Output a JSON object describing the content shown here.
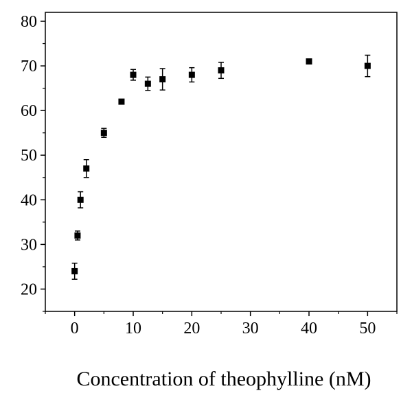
{
  "chart_data": {
    "type": "scatter",
    "title": "",
    "xlabel": "Concentration of theophylline (nM)",
    "ylabel": "",
    "xlim": [
      -5,
      55
    ],
    "ylim": [
      15,
      82
    ],
    "x_ticks": [
      0,
      10,
      20,
      30,
      40,
      50
    ],
    "y_ticks": [
      20,
      30,
      40,
      50,
      60,
      70,
      80
    ],
    "grid": false,
    "marker_color": "#000000",
    "points": [
      {
        "x": 0,
        "y": 24,
        "err": 1.8
      },
      {
        "x": 0.5,
        "y": 32,
        "err": 1.0
      },
      {
        "x": 1,
        "y": 40,
        "err": 1.8
      },
      {
        "x": 2,
        "y": 47,
        "err": 2.0
      },
      {
        "x": 5,
        "y": 55,
        "err": 1.0
      },
      {
        "x": 8,
        "y": 62,
        "err": 0.5
      },
      {
        "x": 10,
        "y": 68,
        "err": 1.2
      },
      {
        "x": 12.5,
        "y": 66,
        "err": 1.5
      },
      {
        "x": 15,
        "y": 67,
        "err": 2.4
      },
      {
        "x": 20,
        "y": 68,
        "err": 1.6
      },
      {
        "x": 25,
        "y": 69,
        "err": 1.8
      },
      {
        "x": 40,
        "y": 71,
        "err": 0.5
      },
      {
        "x": 50,
        "y": 70,
        "err": 2.4
      }
    ]
  }
}
